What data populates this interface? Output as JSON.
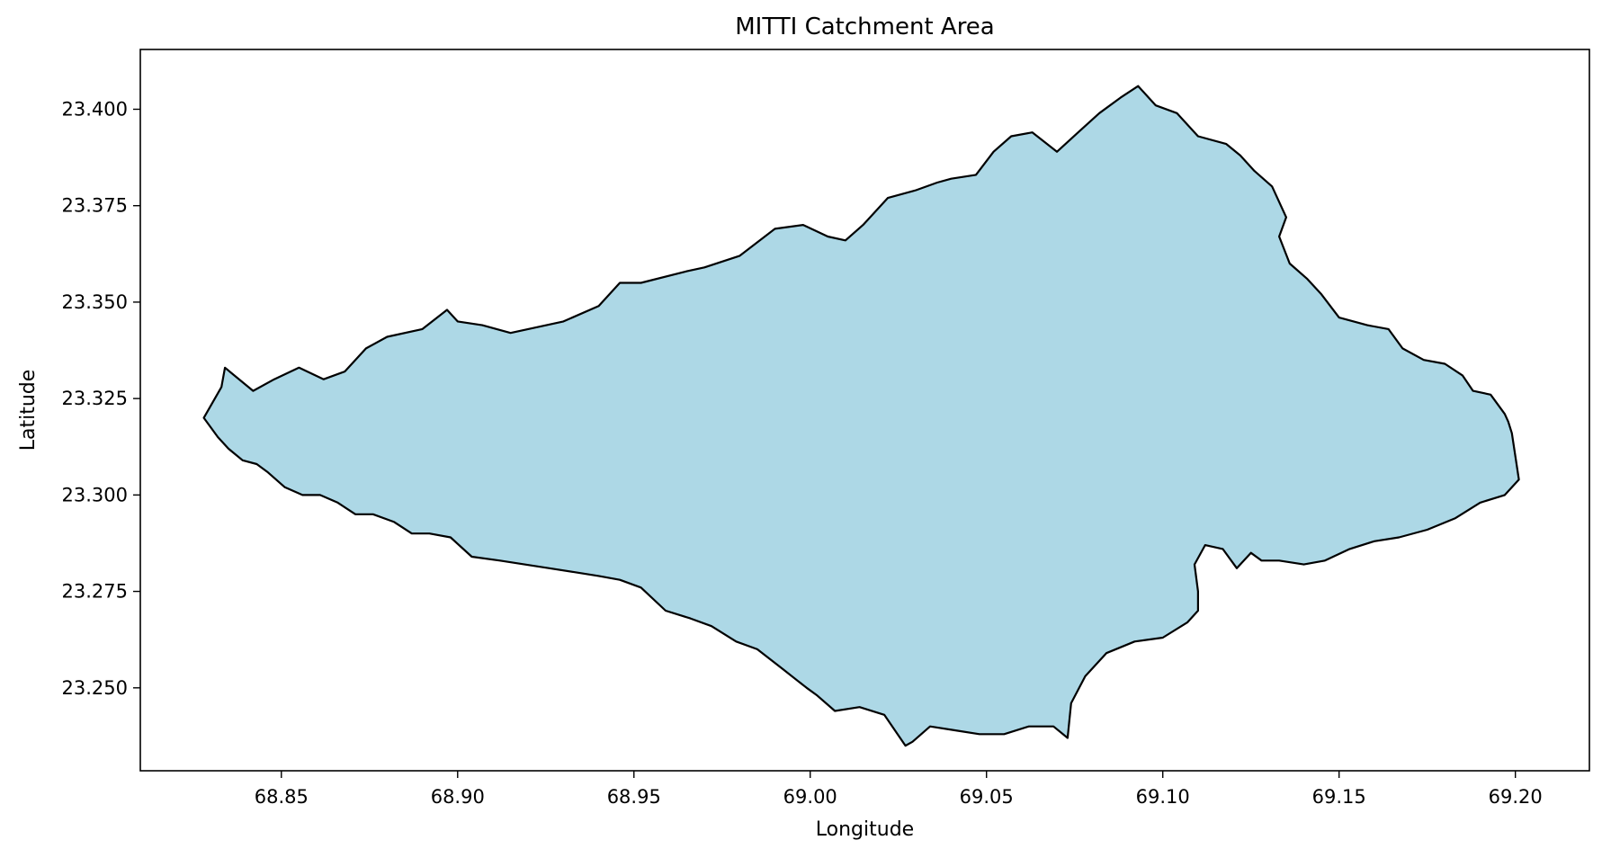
{
  "chart_data": {
    "type": "area",
    "title": "MITTI Catchment Area",
    "xlabel": "Longitude",
    "ylabel": "Latitude",
    "xlim": [
      68.81,
      69.221
    ],
    "ylim": [
      23.2285,
      23.4155
    ],
    "xticks": [
      68.85,
      68.9,
      68.95,
      69.0,
      69.05,
      69.1,
      69.15,
      69.2
    ],
    "xtick_labels": [
      "68.85",
      "68.90",
      "68.95",
      "69.00",
      "69.05",
      "69.10",
      "69.15",
      "69.20"
    ],
    "yticks": [
      23.25,
      23.275,
      23.3,
      23.325,
      23.35,
      23.375,
      23.4
    ],
    "ytick_labels": [
      "23.250",
      "23.275",
      "23.300",
      "23.325",
      "23.350",
      "23.375",
      "23.400"
    ],
    "grid": false,
    "fill_color": "#add8e6",
    "edge_color": "#000000",
    "series": [
      {
        "x": [
          68.828,
          68.833,
          68.834,
          68.842,
          68.848,
          68.855,
          68.862,
          68.868,
          68.874,
          68.88,
          68.89,
          68.897,
          68.9,
          68.907,
          68.915,
          68.92,
          68.93,
          68.94,
          68.946,
          68.952,
          68.965,
          68.97,
          68.98,
          68.99,
          68.998,
          69.005,
          69.01,
          69.015,
          69.022,
          69.03,
          69.036,
          69.04,
          69.047,
          69.052,
          69.057,
          69.063,
          69.07,
          69.076,
          69.082,
          69.088,
          69.093,
          69.098,
          69.104,
          69.11,
          69.118,
          69.122,
          69.126,
          69.131,
          69.135,
          69.133,
          69.136,
          69.141,
          69.145,
          69.15,
          69.158,
          69.164,
          69.168,
          69.174,
          69.18,
          69.185,
          69.188,
          69.193,
          69.197,
          69.198,
          69.199,
          69.201,
          69.197,
          69.19,
          69.183,
          69.175,
          69.167,
          69.16,
          69.153,
          69.146,
          69.14,
          69.133,
          69.128,
          69.125,
          69.121,
          69.117,
          69.112,
          69.109,
          69.11,
          69.11,
          69.107,
          69.1,
          69.092,
          69.084,
          69.078,
          69.074,
          69.073,
          69.069,
          69.062,
          69.055,
          69.048,
          69.041,
          69.034,
          69.029,
          69.027,
          69.021,
          69.014,
          69.007,
          69.002,
          68.999,
          68.992,
          68.985,
          68.979,
          68.972,
          68.966,
          68.959,
          68.952,
          68.946,
          68.94,
          68.933,
          68.926,
          68.919,
          68.912,
          68.904,
          68.898,
          68.892,
          68.887,
          68.882,
          68.876,
          68.871,
          68.866,
          68.861,
          68.856,
          68.851,
          68.846,
          68.843,
          68.839,
          68.835,
          68.832,
          68.828
        ],
        "y": [
          23.32,
          23.328,
          23.333,
          23.327,
          23.33,
          23.333,
          23.33,
          23.332,
          23.338,
          23.341,
          23.343,
          23.348,
          23.345,
          23.344,
          23.342,
          23.343,
          23.345,
          23.349,
          23.355,
          23.355,
          23.358,
          23.359,
          23.362,
          23.369,
          23.37,
          23.367,
          23.366,
          23.37,
          23.377,
          23.379,
          23.381,
          23.382,
          23.383,
          23.389,
          23.393,
          23.394,
          23.389,
          23.394,
          23.399,
          23.403,
          23.406,
          23.401,
          23.399,
          23.393,
          23.391,
          23.388,
          23.384,
          23.38,
          23.372,
          23.367,
          23.36,
          23.356,
          23.352,
          23.346,
          23.344,
          23.343,
          23.338,
          23.335,
          23.334,
          23.331,
          23.327,
          23.326,
          23.321,
          23.319,
          23.316,
          23.304,
          23.3,
          23.298,
          23.294,
          23.291,
          23.289,
          23.288,
          23.286,
          23.283,
          23.282,
          23.283,
          23.283,
          23.285,
          23.281,
          23.286,
          23.287,
          23.282,
          23.275,
          23.27,
          23.267,
          23.263,
          23.262,
          23.259,
          23.253,
          23.246,
          23.237,
          23.24,
          23.24,
          23.238,
          23.238,
          23.239,
          23.24,
          23.236,
          23.235,
          23.243,
          23.245,
          23.244,
          23.248,
          23.25,
          23.255,
          23.26,
          23.262,
          23.266,
          23.268,
          23.27,
          23.276,
          23.278,
          23.279,
          23.28,
          23.281,
          23.282,
          23.283,
          23.284,
          23.289,
          23.29,
          23.29,
          23.293,
          23.295,
          23.295,
          23.298,
          23.3,
          23.3,
          23.302,
          23.306,
          23.308,
          23.309,
          23.312,
          23.315,
          23.32
        ]
      }
    ]
  }
}
